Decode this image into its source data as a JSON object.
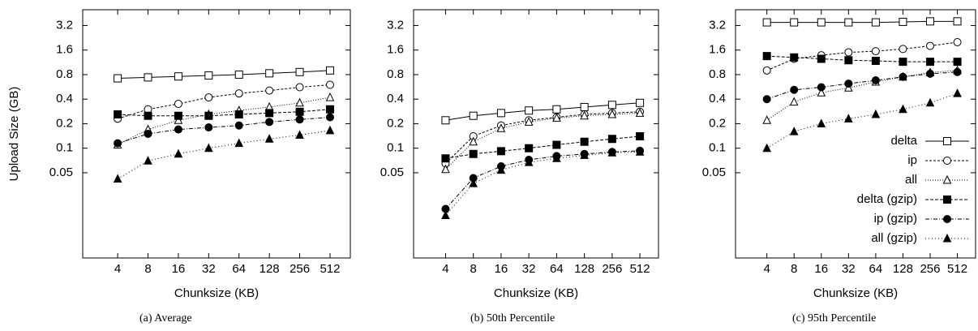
{
  "chart_data": [
    {
      "type": "line",
      "ylabel": "Upload Size (GB)",
      "xlabel": "Chunksize (KB)",
      "caption": "(a) Average",
      "x": [
        4,
        8,
        16,
        32,
        64,
        128,
        256,
        512
      ],
      "xscale": "log",
      "xlim": [
        1.8,
        814
      ],
      "xticks": [
        4,
        8,
        16,
        32,
        64,
        128,
        256,
        512
      ],
      "yscale": "log",
      "ylim": [
        0.0045,
        5
      ],
      "yticks": [
        0.05,
        0.1,
        0.2,
        0.4,
        0.8,
        1.6,
        3.2
      ],
      "series": [
        {
          "color": "#000000",
          "marker": "square",
          "filled": false,
          "dash": "none",
          "values": [
            0.72,
            0.74,
            0.76,
            0.78,
            0.8,
            0.83,
            0.86,
            0.9
          ]
        },
        {
          "color": "#000000",
          "marker": "circle",
          "filled": false,
          "dash": "3,2",
          "values": [
            0.23,
            0.3,
            0.35,
            0.42,
            0.47,
            0.51,
            0.56,
            0.6
          ]
        },
        {
          "color": "#000000",
          "marker": "triangle",
          "filled": false,
          "dash": "1,2",
          "values": [
            0.11,
            0.17,
            0.22,
            0.26,
            0.29,
            0.32,
            0.36,
            0.42
          ]
        },
        {
          "color": "#000000",
          "marker": "square",
          "filled": true,
          "dash": "4,2",
          "values": [
            0.26,
            0.25,
            0.25,
            0.25,
            0.26,
            0.27,
            0.28,
            0.3
          ]
        },
        {
          "color": "#000000",
          "marker": "circle",
          "filled": true,
          "dash": "5,2,1,2",
          "values": [
            0.115,
            0.15,
            0.17,
            0.18,
            0.19,
            0.21,
            0.225,
            0.24
          ]
        },
        {
          "color": "#000000",
          "marker": "triangle",
          "filled": true,
          "dash": "1,3",
          "values": [
            0.042,
            0.07,
            0.085,
            0.1,
            0.115,
            0.13,
            0.145,
            0.165
          ]
        }
      ]
    },
    {
      "type": "line",
      "xlabel": "Chunksize (KB)",
      "caption": "(b) 50th Percentile",
      "x": [
        4,
        8,
        16,
        32,
        64,
        128,
        256,
        512
      ],
      "xscale": "log",
      "xlim": [
        1.8,
        814
      ],
      "xticks": [
        4,
        8,
        16,
        32,
        64,
        128,
        256,
        512
      ],
      "yscale": "log",
      "ylim": [
        0.0045,
        5
      ],
      "yticks": [
        0.05,
        0.1,
        0.2,
        0.4,
        0.8,
        1.6,
        3.2
      ],
      "series": [
        {
          "color": "#000000",
          "marker": "square",
          "filled": false,
          "dash": "none",
          "values": [
            0.22,
            0.25,
            0.27,
            0.29,
            0.3,
            0.32,
            0.34,
            0.36
          ]
        },
        {
          "color": "#000000",
          "marker": "circle",
          "filled": false,
          "dash": "3,2",
          "values": [
            0.065,
            0.14,
            0.19,
            0.22,
            0.24,
            0.26,
            0.27,
            0.28
          ]
        },
        {
          "color": "#000000",
          "marker": "triangle",
          "filled": false,
          "dash": "1,2",
          "values": [
            0.055,
            0.12,
            0.175,
            0.21,
            0.235,
            0.25,
            0.26,
            0.27
          ]
        },
        {
          "color": "#000000",
          "marker": "square",
          "filled": true,
          "dash": "4,2",
          "values": [
            0.075,
            0.085,
            0.092,
            0.1,
            0.11,
            0.12,
            0.13,
            0.14
          ]
        },
        {
          "color": "#000000",
          "marker": "circle",
          "filled": true,
          "dash": "5,2,1,2",
          "values": [
            0.018,
            0.043,
            0.06,
            0.072,
            0.08,
            0.085,
            0.09,
            0.093
          ]
        },
        {
          "color": "#000000",
          "marker": "triangle",
          "filled": true,
          "dash": "1,3",
          "values": [
            0.015,
            0.037,
            0.054,
            0.067,
            0.075,
            0.082,
            0.088,
            0.09
          ]
        }
      ]
    },
    {
      "type": "line",
      "xlabel": "Chunksize (KB)",
      "caption": "(c) 95th Percentile",
      "legend": "lower right",
      "x": [
        4,
        8,
        16,
        32,
        64,
        128,
        256,
        512
      ],
      "xscale": "log",
      "xlim": [
        1.8,
        814
      ],
      "xticks": [
        4,
        8,
        16,
        32,
        64,
        128,
        256,
        512
      ],
      "yscale": "log",
      "ylim": [
        0.0045,
        5
      ],
      "yticks": [
        0.05,
        0.1,
        0.2,
        0.4,
        0.8,
        1.6,
        3.2
      ],
      "series": [
        {
          "name": "delta",
          "color": "#000000",
          "marker": "square",
          "filled": false,
          "dash": "none",
          "values": [
            3.5,
            3.5,
            3.5,
            3.5,
            3.5,
            3.55,
            3.6,
            3.6
          ]
        },
        {
          "name": "ip",
          "color": "#000000",
          "marker": "circle",
          "filled": false,
          "dash": "3,2",
          "values": [
            0.9,
            1.25,
            1.38,
            1.5,
            1.55,
            1.65,
            1.8,
            2.0
          ]
        },
        {
          "name": "all",
          "color": "#000000",
          "marker": "triangle",
          "filled": false,
          "dash": "1,2",
          "values": [
            0.22,
            0.37,
            0.48,
            0.55,
            0.65,
            0.75,
            0.85,
            0.9
          ]
        },
        {
          "name": "delta (gzip)",
          "color": "#000000",
          "marker": "square",
          "filled": true,
          "dash": "4,2",
          "values": [
            1.35,
            1.3,
            1.25,
            1.2,
            1.18,
            1.15,
            1.15,
            1.15
          ]
        },
        {
          "name": "ip (gzip)",
          "color": "#000000",
          "marker": "circle",
          "filled": true,
          "dash": "5,2,1,2",
          "values": [
            0.4,
            0.52,
            0.56,
            0.62,
            0.68,
            0.75,
            0.82,
            0.86
          ]
        },
        {
          "name": "all (gzip)",
          "color": "#000000",
          "marker": "triangle",
          "filled": true,
          "dash": "1,3",
          "values": [
            0.1,
            0.16,
            0.2,
            0.23,
            0.26,
            0.3,
            0.36,
            0.47
          ]
        }
      ]
    }
  ]
}
